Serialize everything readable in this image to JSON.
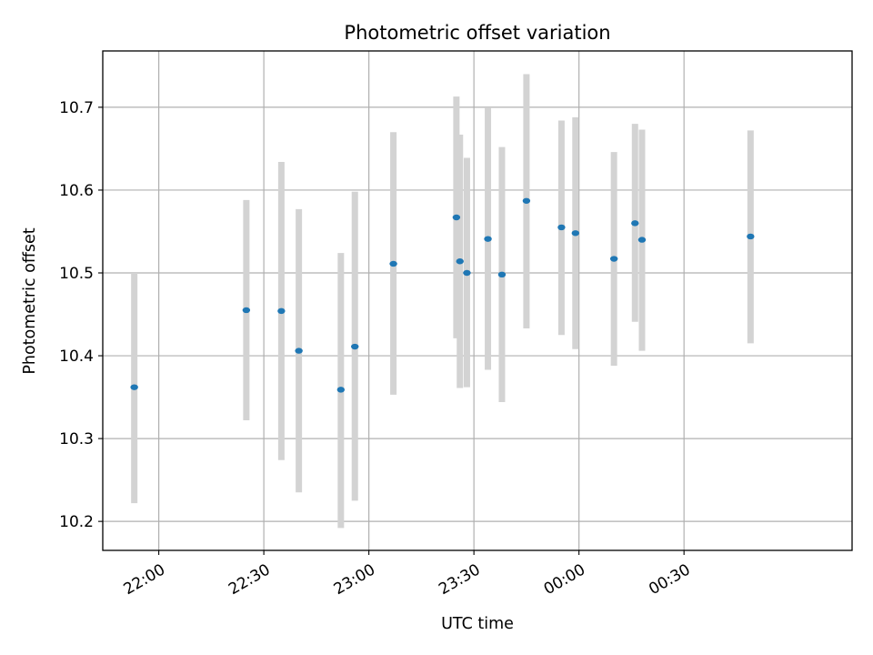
{
  "chart_data": {
    "type": "scatter",
    "title": "Photometric offset variation",
    "xlabel": "UTC time",
    "ylabel": "Photometric offset",
    "x_unit": "HH:MM (UTC)",
    "xlim": [
      "21:44",
      "01:18"
    ],
    "ylim": [
      10.165,
      10.768
    ],
    "x_ticks": [
      "22:00",
      "22:30",
      "23:00",
      "23:30",
      "00:00",
      "00:30"
    ],
    "y_ticks": [
      "10.2",
      "10.3",
      "10.4",
      "10.5",
      "10.6",
      "10.7"
    ],
    "grid": true,
    "legend": "none",
    "marker_color": "#1f77b4",
    "errorbar_color": "#d3d3d3",
    "points": [
      {
        "time": "21:53",
        "y": 10.362,
        "low": 10.222,
        "high": 10.5
      },
      {
        "time": "22:25",
        "y": 10.455,
        "low": 10.322,
        "high": 10.588
      },
      {
        "time": "22:35",
        "y": 10.454,
        "low": 10.274,
        "high": 10.634
      },
      {
        "time": "22:40",
        "y": 10.406,
        "low": 10.235,
        "high": 10.577
      },
      {
        "time": "22:52",
        "y": 10.359,
        "low": 10.192,
        "high": 10.524
      },
      {
        "time": "22:56",
        "y": 10.411,
        "low": 10.225,
        "high": 10.598
      },
      {
        "time": "23:07",
        "y": 10.511,
        "low": 10.353,
        "high": 10.67
      },
      {
        "time": "23:25",
        "y": 10.567,
        "low": 10.421,
        "high": 10.713
      },
      {
        "time": "23:26",
        "y": 10.514,
        "low": 10.361,
        "high": 10.667
      },
      {
        "time": "23:28",
        "y": 10.5,
        "low": 10.362,
        "high": 10.639
      },
      {
        "time": "23:34",
        "y": 10.541,
        "low": 10.383,
        "high": 10.699
      },
      {
        "time": "23:38",
        "y": 10.498,
        "low": 10.344,
        "high": 10.652
      },
      {
        "time": "23:45",
        "y": 10.587,
        "low": 10.433,
        "high": 10.74
      },
      {
        "time": "23:55",
        "y": 10.555,
        "low": 10.425,
        "high": 10.684
      },
      {
        "time": "23:59",
        "y": 10.548,
        "low": 10.408,
        "high": 10.688
      },
      {
        "time": "00:10",
        "y": 10.517,
        "low": 10.388,
        "high": 10.646
      },
      {
        "time": "00:16",
        "y": 10.56,
        "low": 10.441,
        "high": 10.68
      },
      {
        "time": "00:18",
        "y": 10.54,
        "low": 10.406,
        "high": 10.673
      },
      {
        "time": "00:49",
        "y": 10.544,
        "low": 10.415,
        "high": 10.672
      }
    ]
  }
}
